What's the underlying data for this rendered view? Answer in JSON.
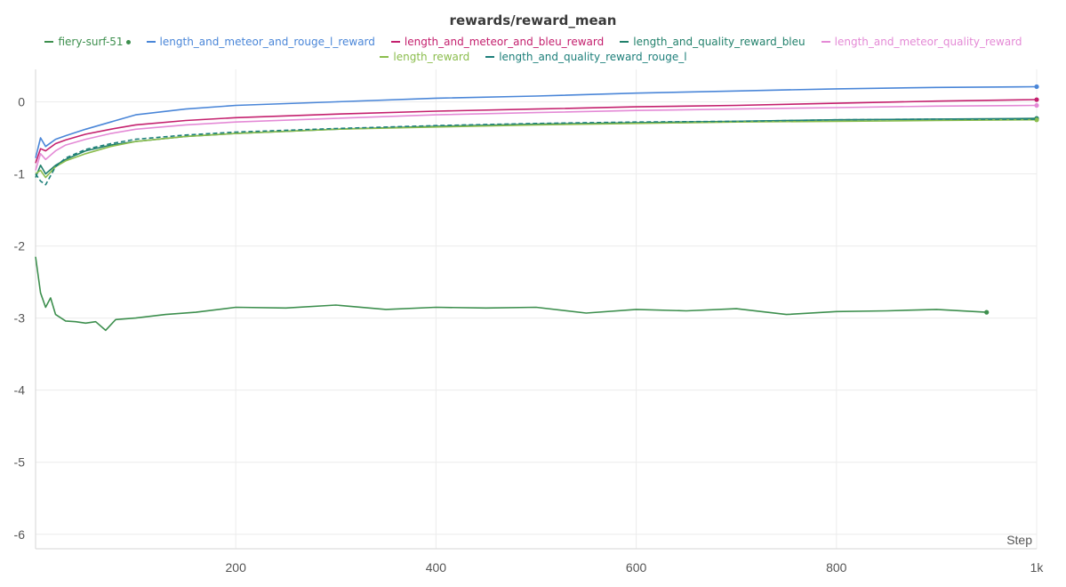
{
  "chart_data": {
    "type": "line",
    "title": "rewards/reward_mean",
    "xlabel": "Step",
    "ylabel": "",
    "xlim": [
      0,
      1000
    ],
    "ylim": [
      -6.2,
      0.45
    ],
    "x_ticks": [
      {
        "value": 200,
        "label": "200"
      },
      {
        "value": 400,
        "label": "400"
      },
      {
        "value": 600,
        "label": "600"
      },
      {
        "value": 800,
        "label": "800"
      },
      {
        "value": 1000,
        "label": "1k"
      }
    ],
    "y_ticks": [
      {
        "value": 0,
        "label": "0"
      },
      {
        "value": -1,
        "label": "-1"
      },
      {
        "value": -2,
        "label": "-2"
      },
      {
        "value": -3,
        "label": "-3"
      },
      {
        "value": -4,
        "label": "-4"
      },
      {
        "value": -5,
        "label": "-5"
      },
      {
        "value": -6,
        "label": "-6"
      }
    ],
    "grid": true,
    "legend_position": "top",
    "series": [
      {
        "name": "fiery-surf-51",
        "color": "#3d8f4e",
        "dash": false,
        "end_dot": true,
        "x": [
          0,
          5,
          10,
          15,
          20,
          30,
          40,
          50,
          60,
          70,
          80,
          100,
          130,
          160,
          200,
          250,
          300,
          350,
          400,
          450,
          500,
          550,
          600,
          650,
          700,
          750,
          800,
          850,
          900,
          950
        ],
        "y": [
          -2.15,
          -2.65,
          -2.85,
          -2.72,
          -2.95,
          -3.04,
          -3.05,
          -3.07,
          -3.05,
          -3.17,
          -3.02,
          -3.0,
          -2.95,
          -2.92,
          -2.85,
          -2.86,
          -2.82,
          -2.88,
          -2.85,
          -2.86,
          -2.85,
          -2.93,
          -2.88,
          -2.9,
          -2.87,
          -2.95,
          -2.91,
          -2.9,
          -2.88,
          -2.92
        ]
      },
      {
        "name": "length_and_meteor_and_rouge_l_reward",
        "color": "#4a86d8",
        "dash": false,
        "end_dot": true,
        "x": [
          0,
          5,
          10,
          20,
          30,
          50,
          75,
          100,
          150,
          200,
          300,
          400,
          500,
          600,
          700,
          800,
          900,
          1000
        ],
        "y": [
          -0.78,
          -0.5,
          -0.62,
          -0.52,
          -0.47,
          -0.38,
          -0.28,
          -0.18,
          -0.1,
          -0.05,
          0.0,
          0.05,
          0.08,
          0.12,
          0.15,
          0.18,
          0.2,
          0.21
        ]
      },
      {
        "name": "length_and_meteor_and_bleu_reward",
        "color": "#c4206e",
        "dash": false,
        "end_dot": true,
        "x": [
          0,
          5,
          10,
          20,
          30,
          50,
          75,
          100,
          150,
          200,
          300,
          400,
          500,
          600,
          700,
          800,
          900,
          1000
        ],
        "y": [
          -0.85,
          -0.65,
          -0.68,
          -0.58,
          -0.53,
          -0.45,
          -0.38,
          -0.32,
          -0.26,
          -0.22,
          -0.17,
          -0.13,
          -0.1,
          -0.07,
          -0.05,
          -0.02,
          0.01,
          0.03
        ]
      },
      {
        "name": "length_and_quality_reward_bleu",
        "color": "#21806b",
        "dash": false,
        "end_dot": true,
        "x": [
          0,
          5,
          10,
          20,
          30,
          50,
          75,
          100,
          150,
          200,
          300,
          400,
          500,
          600,
          700,
          800,
          900,
          1000
        ],
        "y": [
          -1.05,
          -0.88,
          -1.0,
          -0.88,
          -0.8,
          -0.68,
          -0.6,
          -0.55,
          -0.48,
          -0.44,
          -0.38,
          -0.34,
          -0.31,
          -0.29,
          -0.27,
          -0.25,
          -0.24,
          -0.23
        ]
      },
      {
        "name": "length_and_meteor_quality_reward",
        "color": "#e48ad6",
        "dash": false,
        "end_dot": true,
        "x": [
          0,
          5,
          10,
          20,
          30,
          50,
          75,
          100,
          150,
          200,
          300,
          400,
          500,
          600,
          700,
          800,
          900,
          1000
        ],
        "y": [
          -0.95,
          -0.72,
          -0.8,
          -0.68,
          -0.6,
          -0.52,
          -0.44,
          -0.38,
          -0.32,
          -0.28,
          -0.23,
          -0.18,
          -0.15,
          -0.12,
          -0.1,
          -0.08,
          -0.06,
          -0.05
        ]
      },
      {
        "name": "length_reward",
        "color": "#8bbd4d",
        "dash": false,
        "end_dot": true,
        "x": [
          0,
          5,
          10,
          20,
          30,
          50,
          75,
          100,
          150,
          200,
          300,
          400,
          500,
          600,
          700,
          800,
          900,
          1000
        ],
        "y": [
          -1.0,
          -0.95,
          -1.05,
          -0.9,
          -0.82,
          -0.72,
          -0.62,
          -0.55,
          -0.48,
          -0.44,
          -0.38,
          -0.35,
          -0.32,
          -0.3,
          -0.28,
          -0.27,
          -0.26,
          -0.25
        ]
      },
      {
        "name": "length_and_quality_reward_rouge_l",
        "color": "#1d7f7a",
        "dash": true,
        "end_dot": false,
        "x": [
          0,
          5,
          10,
          20,
          30,
          50,
          75,
          100,
          150,
          200,
          300,
          400,
          500,
          600,
          700,
          800,
          900,
          1000
        ],
        "y": [
          -1.0,
          -1.1,
          -1.15,
          -0.9,
          -0.78,
          -0.66,
          -0.58,
          -0.52,
          -0.46,
          -0.42,
          -0.37,
          -0.33,
          -0.3,
          -0.28,
          -0.27,
          -0.25,
          -0.24,
          -0.24
        ]
      }
    ]
  }
}
